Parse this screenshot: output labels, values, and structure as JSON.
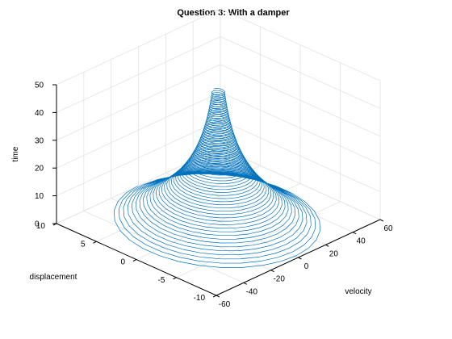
{
  "chart_data": {
    "type": "line",
    "subtype": "3d-parametric-line",
    "title": "Question 3: With a damper",
    "xlabel": "velocity",
    "ylabel": "displacement",
    "zlabel": "time",
    "xlim": [
      -60,
      60
    ],
    "ylim": [
      -10,
      10
    ],
    "zlim": [
      0,
      50
    ],
    "x_ticks": [
      -60,
      -40,
      -20,
      0,
      20,
      40,
      60
    ],
    "y_ticks": [
      -10,
      -5,
      0,
      5,
      10
    ],
    "z_ticks": [
      0,
      10,
      20,
      30,
      40,
      50
    ],
    "grid": true,
    "series": [
      {
        "color": "#0072bd",
        "model": "damped oscillation: displacement = A*exp(-k*t)*cos(w*t), velocity = d(displacement)/dt",
        "t_range": [
          0,
          47
        ],
        "initial_displacement": 10,
        "initial_velocity_amplitude": 50,
        "oscillations": 60,
        "decay_constant": 0.06
      }
    ]
  }
}
